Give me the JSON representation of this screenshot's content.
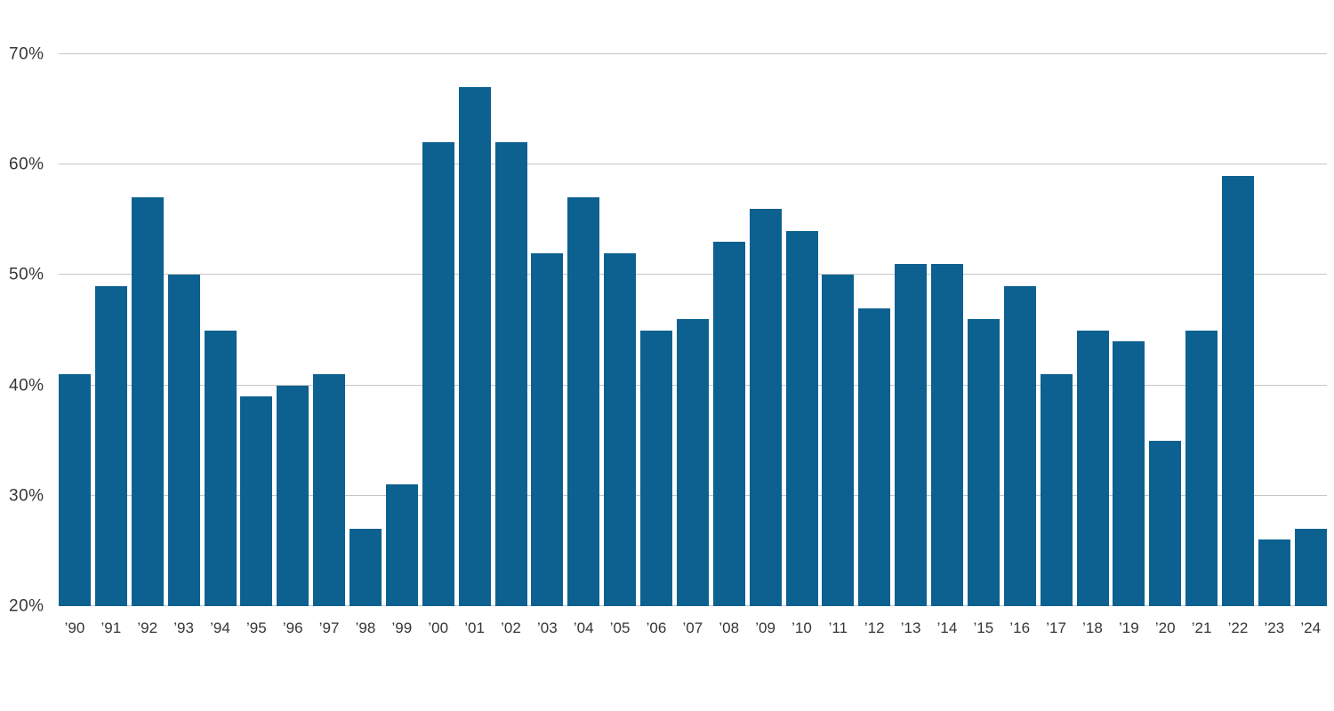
{
  "chart_data": {
    "type": "bar",
    "title": "",
    "xlabel": "",
    "ylabel": "",
    "categories": [
      "’90",
      "’91",
      "’92",
      "’93",
      "’94",
      "’95",
      "’96",
      "’97",
      "’98",
      "’99",
      "’00",
      "’01",
      "’02",
      "’03",
      "’04",
      "’05",
      "’06",
      "’07",
      "’08",
      "’09",
      "’10",
      "’11",
      "’12",
      "’13",
      "’14",
      "’15",
      "’16",
      "’17",
      "’18",
      "’19",
      "’20",
      "’21",
      "’22",
      "’23",
      "’24"
    ],
    "values": [
      41,
      49,
      57,
      50,
      45,
      39,
      40,
      41,
      27,
      31,
      62,
      67,
      62,
      52,
      57,
      52,
      45,
      46,
      53,
      56,
      54,
      50,
      47,
      51,
      51,
      46,
      49,
      41,
      45,
      44,
      35,
      45,
      59,
      26,
      27
    ],
    "value_unit": "%",
    "ylim": [
      20,
      70
    ],
    "yticks": [
      20,
      30,
      40,
      50,
      60,
      70
    ],
    "ytick_labels": [
      "20%",
      "30%",
      "40%",
      "50%",
      "60%",
      "70%"
    ],
    "grid": true,
    "legend": "none",
    "bar_color": "#0c6190",
    "gridline_color": "#c6c6c6",
    "tick_label_color": "#363636",
    "background_color": "#ffffff"
  }
}
